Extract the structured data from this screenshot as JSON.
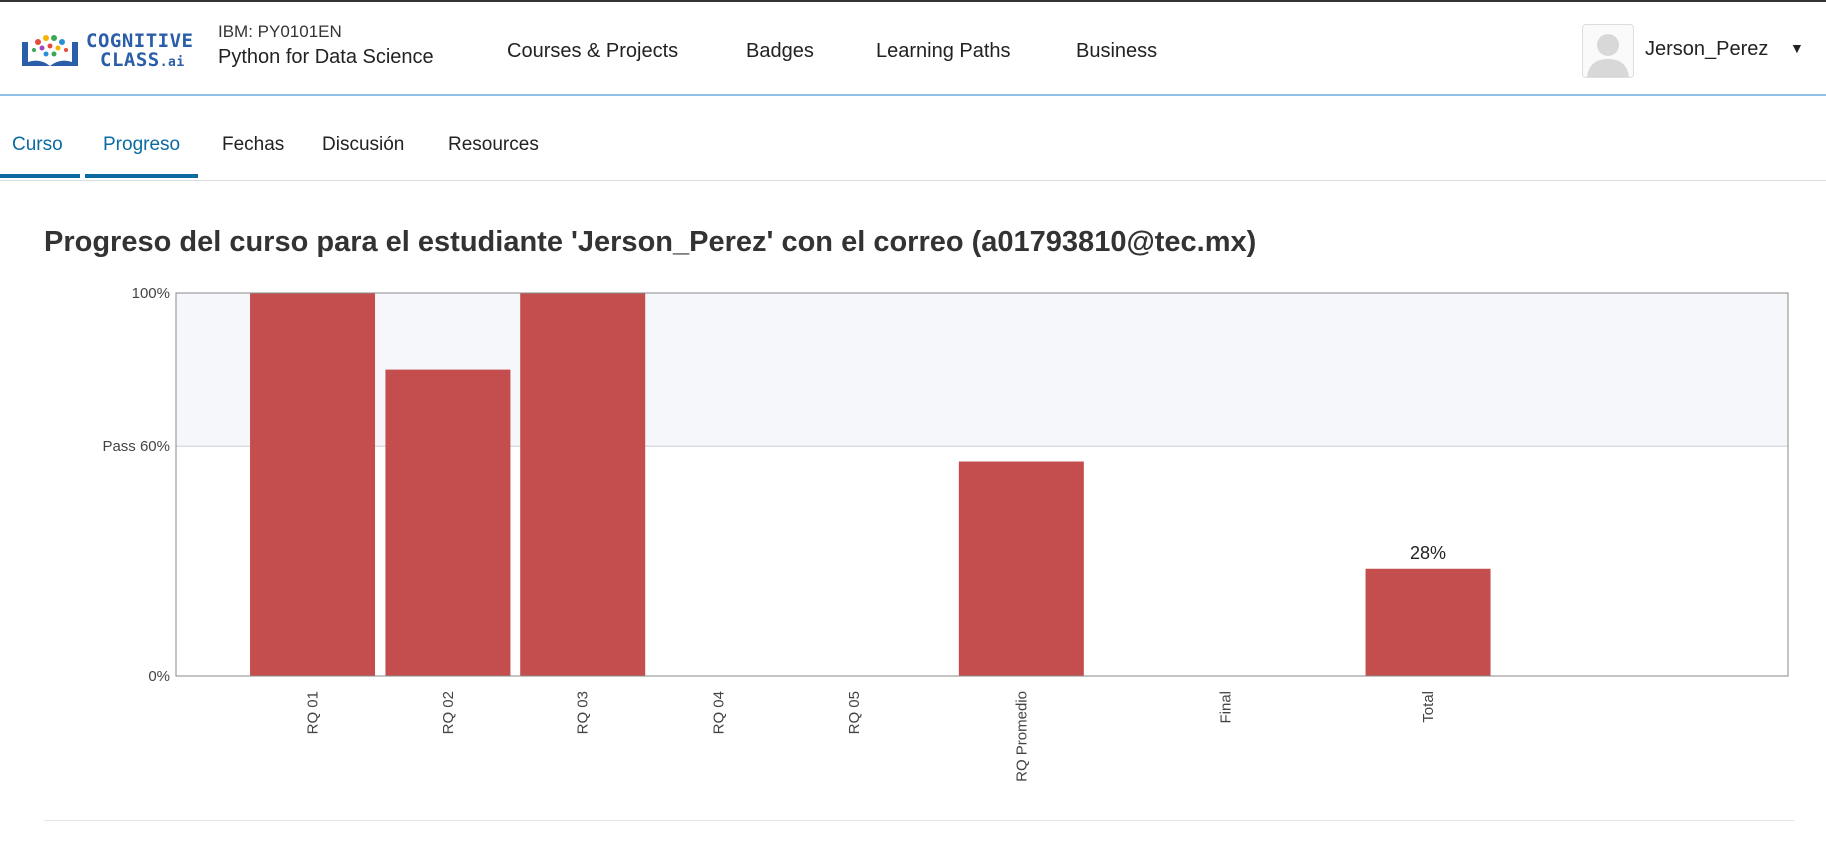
{
  "header": {
    "logo": {
      "line1": "COGNITIVE",
      "line2": "CLASS",
      "suffix": ".ai"
    },
    "course_code": "IBM: PY0101EN",
    "course_name": "Python for Data Science",
    "nav": [
      "Courses & Projects",
      "Badges",
      "Learning Paths",
      "Business"
    ],
    "user_name": "Jerson_Perez"
  },
  "tabs": [
    {
      "label": "Curso",
      "active": true
    },
    {
      "label": "Progreso",
      "active": true
    },
    {
      "label": "Fechas",
      "active": false
    },
    {
      "label": "Discusión",
      "active": false
    },
    {
      "label": "Resources",
      "active": false
    }
  ],
  "title": "Progreso del curso para el estudiante 'Jerson_Perez' con el correo (a01793810@tec.mx)",
  "colors": {
    "bar": "#c44e4e",
    "accent": "#0a6aa1",
    "pass_band": "#f6f7fa"
  },
  "chart_data": {
    "type": "bar",
    "categories": [
      "RQ 01",
      "RQ 02",
      "RQ 03",
      "RQ 04",
      "RQ 05",
      "RQ Promedio",
      "Final",
      "Total"
    ],
    "values": [
      100,
      80,
      100,
      0,
      0,
      56,
      0,
      28
    ],
    "data_labels": {
      "Total": "28%"
    },
    "y_ticks": [
      {
        "value": 0,
        "label": "0%"
      },
      {
        "value": 60,
        "label": "Pass 60%"
      },
      {
        "value": 100,
        "label": "100%"
      }
    ],
    "ylim": [
      0,
      100
    ],
    "pass_threshold": 60,
    "xlabel": "",
    "ylabel": ""
  }
}
